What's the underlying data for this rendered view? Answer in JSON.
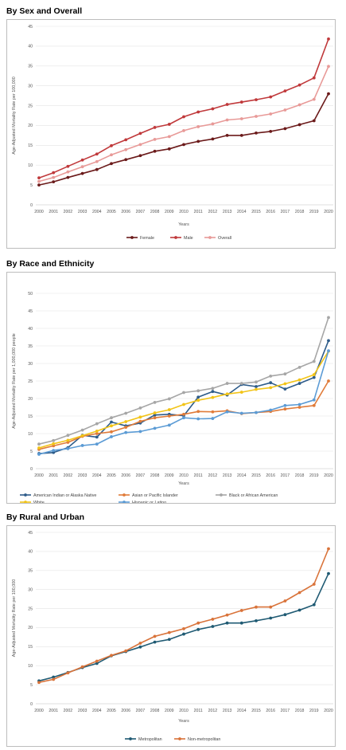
{
  "sections": [
    {
      "title": "By Sex and Overall"
    },
    {
      "title": "By Race and Ethnicity"
    },
    {
      "title": "By Rural and Urban"
    }
  ],
  "chart_data": [
    {
      "type": "line",
      "title": "By Sex and Overall",
      "xlabel": "Years",
      "ylabel": "Age-Adjusted Mortality Rate per 100,000",
      "ylim": [
        0,
        45
      ],
      "yticks": [
        0,
        5,
        10,
        15,
        20,
        25,
        30,
        35,
        40,
        45
      ],
      "legend": "bottom",
      "x": [
        "2000",
        "2001",
        "2002",
        "2003",
        "2004",
        "2005",
        "2006",
        "2007",
        "2008",
        "2009",
        "2010",
        "2011",
        "2012",
        "2013",
        "2014",
        "2015",
        "2016",
        "2017",
        "2018",
        "2019",
        "2020"
      ],
      "series": [
        {
          "name": "Female",
          "color": "#6b1a1a",
          "values": [
            5.0,
            5.8,
            6.9,
            7.9,
            8.9,
            10.4,
            11.4,
            12.4,
            13.5,
            14.1,
            15.2,
            16.0,
            16.6,
            17.5,
            17.5,
            18.1,
            18.5,
            19.2,
            20.2,
            21.2,
            28.0
          ]
        },
        {
          "name": "Male",
          "color": "#c0393b",
          "values": [
            6.8,
            8.1,
            9.7,
            11.3,
            12.8,
            14.9,
            16.4,
            18.0,
            19.5,
            20.3,
            22.2,
            23.4,
            24.2,
            25.3,
            25.9,
            26.5,
            27.2,
            28.7,
            30.2,
            32.0,
            41.8
          ]
        },
        {
          "name": "Overall",
          "color": "#e89a98",
          "values": [
            5.9,
            6.9,
            8.3,
            9.6,
            10.9,
            12.6,
            13.9,
            15.2,
            16.5,
            17.2,
            18.7,
            19.7,
            20.4,
            21.4,
            21.7,
            22.3,
            22.9,
            23.9,
            25.2,
            26.6,
            34.9
          ]
        }
      ]
    },
    {
      "type": "line",
      "title": "By Race and Ethnicity",
      "xlabel": "Years",
      "ylabel": "Age-Adjusted Mortality Rate per 1,000,000 people",
      "ylim": [
        0,
        50
      ],
      "yticks": [
        0,
        5,
        10,
        15,
        20,
        25,
        30,
        35,
        40,
        45,
        50
      ],
      "legend": "bottom",
      "x": [
        "2000",
        "2001",
        "2002",
        "2003",
        "2004",
        "2005",
        "2006",
        "2007",
        "2008",
        "2009",
        "2010",
        "2011",
        "2012",
        "2013",
        "2014",
        "2015",
        "2016",
        "2017",
        "2018",
        "2019",
        "2020"
      ],
      "series": [
        {
          "name": "American Indian or Alaska Native",
          "color": "#2e5c8a",
          "values": [
            4.3,
            4.6,
            6.0,
            9.5,
            9.0,
            13.3,
            12.2,
            13.0,
            15.3,
            15.5,
            15.1,
            20.4,
            22.0,
            21.0,
            24.0,
            23.4,
            24.5,
            22.7,
            24.3,
            26.0,
            36.5
          ]
        },
        {
          "name": "Asian or Pacific Islander",
          "color": "#e07b39",
          "values": [
            5.5,
            6.5,
            7.5,
            9.2,
            10.0,
            10.5,
            11.8,
            13.5,
            14.5,
            15.0,
            15.5,
            16.3,
            16.2,
            16.5,
            15.7,
            16.0,
            16.3,
            17.0,
            17.5,
            18.0,
            25.0
          ]
        },
        {
          "name": "Black or African American",
          "color": "#a6a6a6",
          "values": [
            7.0,
            8.0,
            9.5,
            11.0,
            12.8,
            14.5,
            15.8,
            17.3,
            18.9,
            19.9,
            21.7,
            22.2,
            22.9,
            24.3,
            24.3,
            24.7,
            26.4,
            27.0,
            28.9,
            30.6,
            43.1
          ]
        },
        {
          "name": "White",
          "color": "#f2c418",
          "values": [
            5.9,
            7.1,
            8.1,
            9.4,
            10.7,
            12.2,
            13.4,
            14.7,
            15.9,
            16.8,
            18.3,
            19.5,
            20.3,
            21.3,
            21.8,
            22.6,
            23.1,
            24.2,
            25.3,
            26.8,
            33.5
          ]
        },
        {
          "name": "Hispanic or Latino",
          "color": "#5b9bd5",
          "values": [
            4.1,
            5.2,
            5.7,
            6.6,
            7.0,
            9.1,
            10.3,
            10.6,
            11.5,
            12.4,
            14.5,
            14.2,
            14.3,
            16.2,
            15.8,
            16.0,
            16.7,
            18.0,
            18.3,
            19.6,
            33.6
          ]
        }
      ]
    },
    {
      "type": "line",
      "title": "By Rural and Urban",
      "xlabel": "Years",
      "ylabel": "Age-Adjusted Mortality Rate per 100,000",
      "ylim": [
        0,
        45
      ],
      "yticks": [
        0,
        5,
        10,
        15,
        20,
        25,
        30,
        35,
        40,
        45
      ],
      "legend": "bottom",
      "x": [
        "2000",
        "2001",
        "2002",
        "2003",
        "2004",
        "2005",
        "2006",
        "2007",
        "2008",
        "2009",
        "2010",
        "2011",
        "2012",
        "2013",
        "2014",
        "2015",
        "2016",
        "2017",
        "2018",
        "2019",
        "2020"
      ],
      "series": [
        {
          "name": "Metropolitan",
          "color": "#1f5a73",
          "values": [
            6.0,
            7.0,
            8.2,
            9.5,
            10.6,
            12.6,
            13.7,
            14.9,
            16.2,
            16.9,
            18.3,
            19.5,
            20.3,
            21.2,
            21.2,
            21.8,
            22.5,
            23.4,
            24.6,
            26.0,
            34.2
          ]
        },
        {
          "name": "Non-metropolitan",
          "color": "#d9733a",
          "values": [
            5.6,
            6.4,
            8.1,
            9.7,
            11.2,
            12.7,
            13.9,
            15.9,
            17.7,
            18.7,
            19.7,
            21.2,
            22.2,
            23.3,
            24.5,
            25.4,
            25.4,
            27.0,
            29.2,
            31.4,
            40.7
          ]
        }
      ]
    }
  ]
}
